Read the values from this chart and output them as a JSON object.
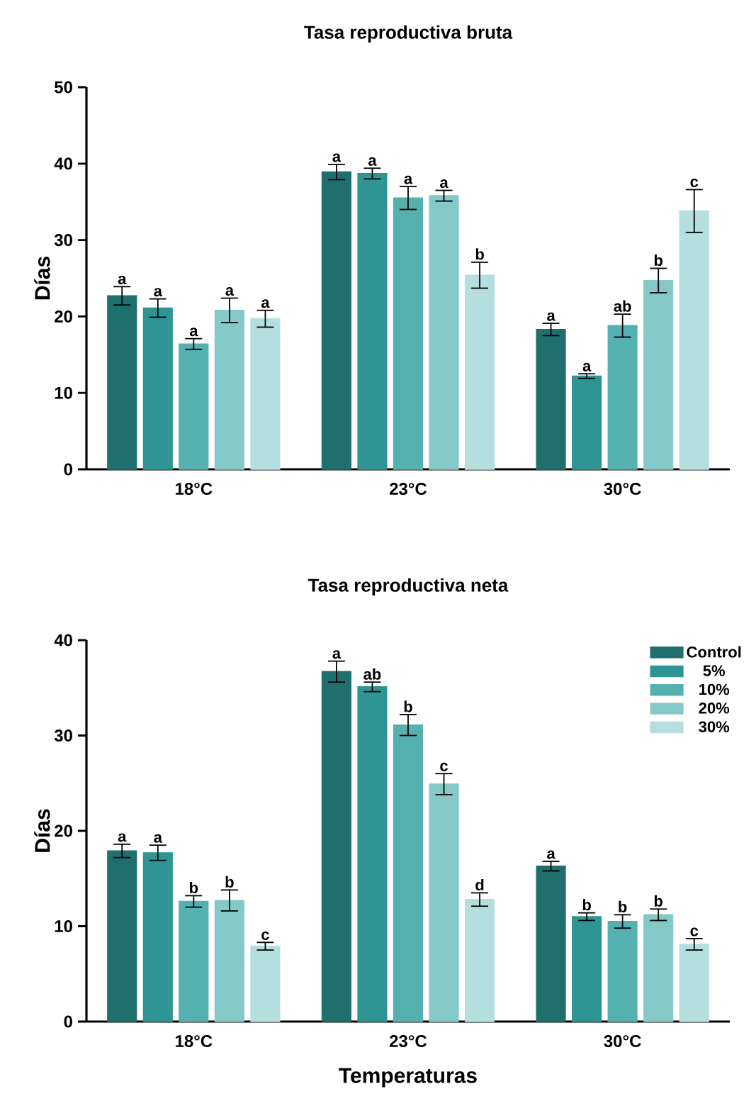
{
  "chart_data": [
    {
      "type": "bar",
      "title": "Tasa reproductiva bruta",
      "ylabel": "Días",
      "categories": [
        "18°C",
        "23°C",
        "30°C"
      ],
      "ylim": [
        0,
        50
      ],
      "yticks": [
        0,
        10,
        20,
        30,
        40,
        50
      ],
      "series": [
        {
          "color": "#1f6f6f",
          "values": [
            22.7,
            38.9,
            18.3
          ],
          "errors": [
            1.2,
            1.0,
            0.8
          ],
          "value_labels": [
            "a",
            "a",
            "a"
          ]
        },
        {
          "color": "#2e9494",
          "values": [
            21.1,
            38.7,
            12.2
          ],
          "errors": [
            1.2,
            0.7,
            0.3
          ],
          "value_labels": [
            "a",
            "a",
            "a"
          ]
        },
        {
          "color": "#55b0b0",
          "values": [
            16.4,
            35.5,
            18.8
          ],
          "errors": [
            0.7,
            1.5,
            1.5
          ],
          "value_labels": [
            "a",
            "a",
            "ab"
          ]
        },
        {
          "color": "#85c8c8",
          "values": [
            20.8,
            35.8,
            24.7
          ],
          "errors": [
            1.6,
            0.7,
            1.6
          ],
          "value_labels": [
            "a",
            "a",
            "b"
          ]
        },
        {
          "color": "#b5dede",
          "values": [
            19.7,
            25.4,
            33.8
          ],
          "errors": [
            1.1,
            1.7,
            2.8
          ],
          "value_labels": [
            "a",
            "b",
            "c"
          ]
        }
      ]
    },
    {
      "type": "bar",
      "title": "Tasa reproductiva neta",
      "xlabel": "Temperaturas",
      "ylabel": "Días",
      "categories": [
        "18°C",
        "23°C",
        "30°C"
      ],
      "ylim": [
        0,
        40
      ],
      "yticks": [
        0,
        10,
        20,
        30,
        40
      ],
      "legend": "top right",
      "series": [
        {
          "name": "Control",
          "color": "#1f6f6f",
          "values": [
            17.9,
            36.7,
            16.3
          ],
          "errors": [
            0.7,
            1.1,
            0.5
          ],
          "value_labels": [
            "a",
            "a",
            "a"
          ]
        },
        {
          "name": "5%",
          "color": "#2e9494",
          "values": [
            17.7,
            35.1,
            11.0
          ],
          "errors": [
            0.8,
            0.5,
            0.4
          ],
          "value_labels": [
            "a",
            "ab",
            "b"
          ]
        },
        {
          "name": "10%",
          "color": "#55b0b0",
          "values": [
            12.6,
            31.1,
            10.5
          ],
          "errors": [
            0.6,
            1.1,
            0.7
          ],
          "value_labels": [
            "b",
            "b",
            "b"
          ]
        },
        {
          "name": "20%",
          "color": "#85c8c8",
          "values": [
            12.7,
            24.9,
            11.2
          ],
          "errors": [
            1.1,
            1.1,
            0.6
          ],
          "value_labels": [
            "b",
            "c",
            "b"
          ]
        },
        {
          "name": "30%",
          "color": "#b5dede",
          "values": [
            7.9,
            12.8,
            8.1
          ],
          "errors": [
            0.4,
            0.7,
            0.6
          ],
          "value_labels": [
            "c",
            "d",
            "c"
          ]
        }
      ]
    }
  ]
}
